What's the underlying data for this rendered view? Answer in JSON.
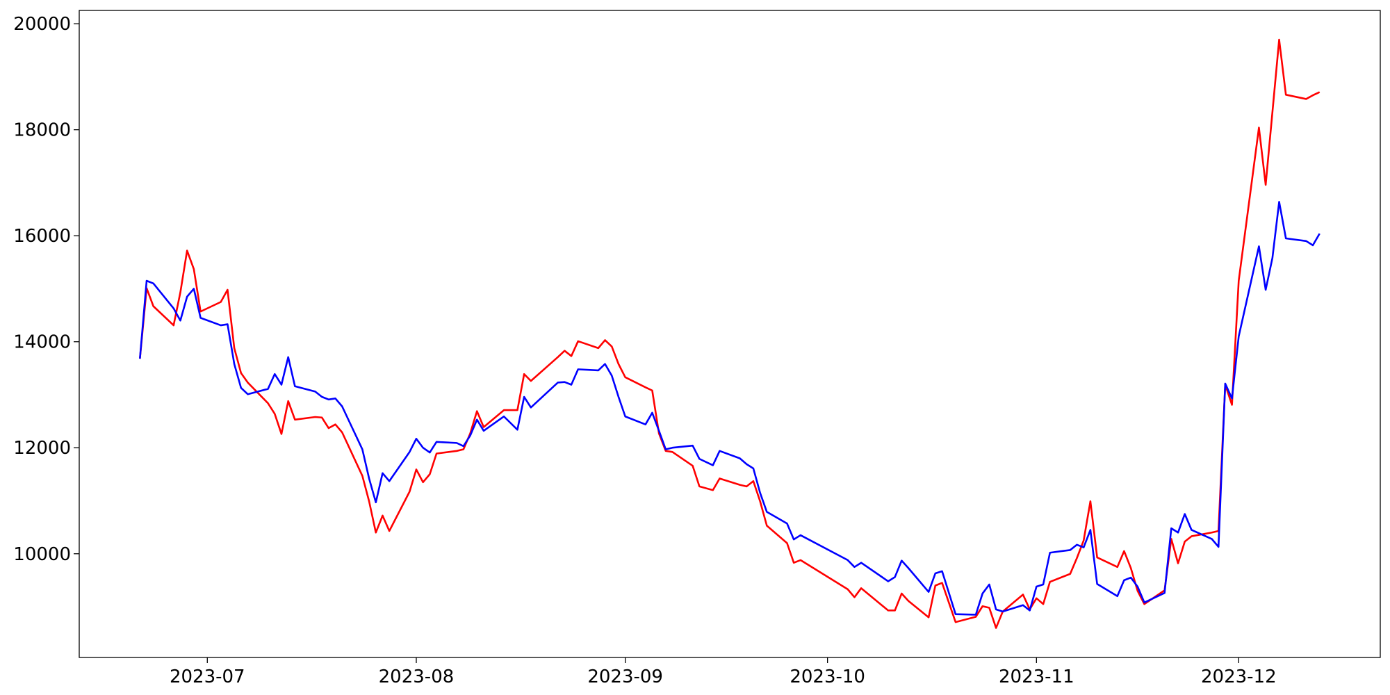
{
  "chart_data": {
    "type": "line",
    "x": [
      "2023-06-21",
      "2023-06-22",
      "2023-06-23",
      "2023-06-26",
      "2023-06-27",
      "2023-06-28",
      "2023-06-29",
      "2023-06-30",
      "2023-07-03",
      "2023-07-04",
      "2023-07-05",
      "2023-07-06",
      "2023-07-07",
      "2023-07-10",
      "2023-07-11",
      "2023-07-12",
      "2023-07-13",
      "2023-07-14",
      "2023-07-17",
      "2023-07-18",
      "2023-07-19",
      "2023-07-20",
      "2023-07-21",
      "2023-07-24",
      "2023-07-25",
      "2023-07-26",
      "2023-07-27",
      "2023-07-28",
      "2023-07-31",
      "2023-08-01",
      "2023-08-02",
      "2023-08-03",
      "2023-08-04",
      "2023-08-07",
      "2023-08-08",
      "2023-08-09",
      "2023-08-10",
      "2023-08-11",
      "2023-08-14",
      "2023-08-16",
      "2023-08-17",
      "2023-08-18",
      "2023-08-22",
      "2023-08-23",
      "2023-08-24",
      "2023-08-25",
      "2023-08-28",
      "2023-08-29",
      "2023-08-30",
      "2023-08-31",
      "2023-09-01",
      "2023-09-04",
      "2023-09-05",
      "2023-09-06",
      "2023-09-07",
      "2023-09-08",
      "2023-09-11",
      "2023-09-12",
      "2023-09-14",
      "2023-09-15",
      "2023-09-18",
      "2023-09-19",
      "2023-09-20",
      "2023-09-21",
      "2023-09-22",
      "2023-09-25",
      "2023-09-26",
      "2023-09-27",
      "2023-10-04",
      "2023-10-05",
      "2023-10-06",
      "2023-10-10",
      "2023-10-11",
      "2023-10-12",
      "2023-10-13",
      "2023-10-16",
      "2023-10-17",
      "2023-10-18",
      "2023-10-20",
      "2023-10-23",
      "2023-10-24",
      "2023-10-25",
      "2023-10-26",
      "2023-10-27",
      "2023-10-30",
      "2023-10-31",
      "2023-11-01",
      "2023-11-02",
      "2023-11-03",
      "2023-11-06",
      "2023-11-07",
      "2023-11-08",
      "2023-11-09",
      "2023-11-10",
      "2023-11-13",
      "2023-11-14",
      "2023-11-15",
      "2023-11-16",
      "2023-11-17",
      "2023-11-20",
      "2023-11-21",
      "2023-11-22",
      "2023-11-23",
      "2023-11-24",
      "2023-11-27",
      "2023-11-28",
      "2023-11-29",
      "2023-11-30",
      "2023-12-01",
      "2023-12-04",
      "2023-12-05",
      "2023-12-06",
      "2023-12-07",
      "2023-12-08",
      "2023-12-11",
      "2023-12-12",
      "2023-12-13"
    ],
    "series": [
      {
        "color": "#ff0000",
        "values": [
          13680,
          15010,
          14670,
          14310,
          14930,
          15720,
          15370,
          14570,
          14750,
          14980,
          13880,
          13410,
          13230,
          12840,
          12640,
          12260,
          12880,
          12530,
          12580,
          12570,
          12370,
          12440,
          12290,
          11470,
          10990,
          10400,
          10720,
          10430,
          11170,
          11590,
          11350,
          11500,
          11890,
          11940,
          11970,
          12270,
          12690,
          12390,
          12710,
          12710,
          13390,
          13260,
          13710,
          13830,
          13730,
          14010,
          13880,
          14030,
          13910,
          13580,
          13330,
          13140,
          13080,
          12270,
          11940,
          11920,
          11660,
          11270,
          11200,
          11420,
          11300,
          11270,
          11370,
          10990,
          10530,
          10200,
          9830,
          9880,
          9330,
          9180,
          9350,
          8930,
          8930,
          9250,
          9110,
          8800,
          9400,
          9450,
          8710,
          8810,
          9010,
          8980,
          8600,
          8910,
          9230,
          8950,
          9160,
          9050,
          9470,
          9620,
          9920,
          10250,
          10990,
          9930,
          9750,
          10050,
          9730,
          9300,
          9050,
          9310,
          10280,
          9820,
          10230,
          10330,
          10400,
          10430,
          13190,
          12810,
          15150,
          18040,
          16960,
          18330,
          19700,
          18660,
          18580,
          18650,
          18710
        ]
      },
      {
        "color": "#0000ff",
        "values": [
          13680,
          15150,
          15100,
          14630,
          14400,
          14850,
          15000,
          14450,
          14310,
          14330,
          13580,
          13130,
          13010,
          13110,
          13390,
          13190,
          13710,
          13160,
          13060,
          12960,
          12910,
          12930,
          12780,
          11970,
          11420,
          10970,
          11520,
          11370,
          11920,
          12170,
          12000,
          11910,
          12110,
          12090,
          12030,
          12230,
          12530,
          12320,
          12590,
          12340,
          12960,
          12760,
          13230,
          13240,
          13190,
          13480,
          13460,
          13580,
          13360,
          12960,
          12590,
          12440,
          12660,
          12320,
          11970,
          12000,
          12040,
          11790,
          11670,
          11940,
          11800,
          11690,
          11610,
          11150,
          10790,
          10570,
          10270,
          10350,
          9880,
          9750,
          9830,
          9480,
          9560,
          9870,
          9730,
          9280,
          9630,
          9670,
          8860,
          8850,
          9250,
          9420,
          8950,
          8910,
          9030,
          8930,
          9380,
          9420,
          10020,
          10070,
          10170,
          10120,
          10450,
          9430,
          9200,
          9500,
          9550,
          9380,
          9080,
          9260,
          10480,
          10400,
          10750,
          10450,
          10280,
          10130,
          13210,
          12930,
          14100,
          15800,
          14980,
          15580,
          16640,
          15950,
          15900,
          15820,
          16040
        ]
      }
    ],
    "xlim": [
      "2023-06-12",
      "2023-12-22"
    ],
    "xticks": [
      {
        "value": "2023-07-01",
        "label": "2023-07"
      },
      {
        "value": "2023-08-01",
        "label": "2023-08"
      },
      {
        "value": "2023-09-01",
        "label": "2023-09"
      },
      {
        "value": "2023-10-01",
        "label": "2023-10"
      },
      {
        "value": "2023-11-01",
        "label": "2023-11"
      },
      {
        "value": "2023-12-01",
        "label": "2023-12"
      }
    ],
    "ylim": [
      8043,
      20251
    ],
    "yticks": [
      10000,
      12000,
      14000,
      16000,
      18000,
      20000
    ],
    "grid": false
  }
}
